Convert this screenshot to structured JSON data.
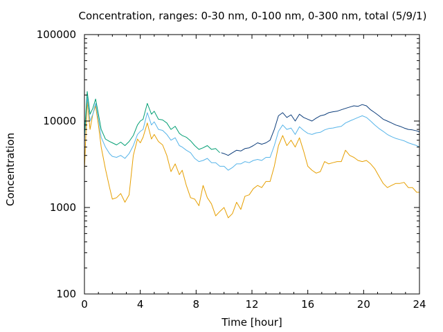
{
  "chart_data": {
    "type": "line",
    "title": "Concentration, ranges: 0-30 nm, 0-100 nm, 0-300 nm, total (5/9/1)",
    "xlabel": "Time [hour]",
    "ylabel": "Concentration",
    "xlim": [
      0,
      24
    ],
    "ylim": [
      100,
      100000
    ],
    "yscale": "log",
    "xticks": [
      0,
      4,
      8,
      12,
      16,
      20,
      24
    ],
    "xtick_labels": [
      "0",
      "4",
      "8",
      "12",
      "16",
      "20",
      "24"
    ],
    "yticks": [
      100,
      1000,
      10000,
      100000
    ],
    "ytick_labels": [
      "100",
      "1000",
      "10000",
      "100000"
    ],
    "grid": false,
    "legend": "none",
    "series": [
      {
        "color": "#e69f00",
        "x": [
          0,
          0.2,
          0.4,
          0.6,
          0.8,
          1.0,
          1.2,
          1.5,
          1.8,
          2.0,
          2.3,
          2.6,
          2.9,
          3.2,
          3.5,
          3.8,
          4.0,
          4.2,
          4.5,
          4.8,
          5.0,
          5.3,
          5.6,
          5.9,
          6.2,
          6.5,
          6.8,
          7.0,
          7.3,
          7.6,
          7.9,
          8.2,
          8.5,
          8.8,
          9.1,
          9.4,
          9.7,
          10.0,
          10.3,
          10.6,
          10.9,
          11.2,
          11.5,
          11.8,
          12.1,
          12.4,
          12.7,
          13.0,
          13.3,
          13.6,
          13.9,
          14.2,
          14.5,
          14.8,
          15.1,
          15.4,
          15.7,
          16.0,
          16.3,
          16.6,
          16.9,
          17.2,
          17.5,
          17.8,
          18.1,
          18.4,
          18.7,
          19.0,
          19.3,
          19.6,
          19.9,
          20.2,
          20.5,
          20.8,
          21.1,
          21.4,
          21.7,
          22.0,
          22.3,
          22.6,
          22.9,
          23.2,
          23.5,
          23.8,
          24.0
        ],
        "y": [
          2700,
          17000,
          8000,
          12000,
          15000,
          9000,
          5000,
          2800,
          1700,
          1250,
          1300,
          1450,
          1150,
          1400,
          4000,
          6200,
          5600,
          6500,
          9500,
          6200,
          7000,
          5800,
          5300,
          4000,
          2600,
          3200,
          2400,
          2700,
          1800,
          1300,
          1250,
          1050,
          1800,
          1300,
          1100,
          800,
          900,
          1000,
          760,
          850,
          1150,
          950,
          1350,
          1400,
          1650,
          1800,
          1700,
          2000,
          2000,
          3000,
          5200,
          6800,
          5200,
          6000,
          5000,
          6400,
          4500,
          3000,
          2700,
          2500,
          2600,
          3400,
          3200,
          3300,
          3400,
          3400,
          4600,
          4000,
          3800,
          3500,
          3400,
          3500,
          3200,
          2800,
          2300,
          1900,
          1700,
          1800,
          1900,
          1900,
          1950,
          1700,
          1700,
          1500,
          1500
        ]
      },
      {
        "color": "#56b4e9",
        "x": [
          0,
          0.2,
          0.4,
          0.6,
          0.8,
          1.0,
          1.2,
          1.5,
          1.8,
          2.0,
          2.3,
          2.6,
          2.9,
          3.2,
          3.5,
          3.8,
          4.0,
          4.2,
          4.5,
          4.8,
          5.0,
          5.3,
          5.6,
          5.9,
          6.2,
          6.5,
          6.8,
          7.0,
          7.3,
          7.6,
          7.9,
          8.2,
          8.5,
          8.8,
          9.1,
          9.4,
          9.7,
          10.0,
          10.3,
          10.6,
          10.9,
          11.2,
          11.5,
          11.8,
          12.1,
          12.4,
          12.7,
          13.0,
          13.3,
          13.6,
          13.9,
          14.2,
          14.5,
          14.8,
          15.1,
          15.4,
          15.7,
          16.0,
          16.3,
          16.6,
          16.9,
          17.2,
          17.5,
          17.8,
          18.1,
          18.4,
          18.7,
          19.0,
          19.3,
          19.6,
          19.9,
          20.2,
          20.5,
          20.8,
          21.1,
          21.4,
          21.7,
          22.0,
          22.3,
          22.6,
          22.9,
          23.2,
          23.5,
          23.8,
          24.0
        ],
        "y": [
          6000,
          19000,
          10000,
          12000,
          16000,
          10500,
          6500,
          5000,
          4200,
          3900,
          3800,
          4000,
          3700,
          4200,
          5200,
          7000,
          7600,
          8000,
          12500,
          9000,
          9800,
          8000,
          7800,
          7000,
          6000,
          6400,
          5200,
          5000,
          4600,
          4300,
          3700,
          3400,
          3500,
          3700,
          3300,
          3300,
          3000,
          3000,
          2700,
          2900,
          3200,
          3200,
          3400,
          3300,
          3500,
          3600,
          3500,
          3800,
          3800,
          5200,
          7600,
          9000,
          8000,
          8300,
          7000,
          8600,
          7800,
          7200,
          7000,
          7300,
          7400,
          7900,
          8200,
          8300,
          8500,
          8700,
          9500,
          10000,
          10500,
          11000,
          11500,
          11000,
          10000,
          9000,
          8200,
          7600,
          7000,
          6600,
          6300,
          6100,
          5900,
          5600,
          5400,
          5200,
          5000
        ]
      },
      {
        "color": "#009e73",
        "x": [
          0,
          0.2,
          0.4,
          0.6,
          0.8,
          1.0,
          1.2,
          1.5,
          1.8,
          2.0,
          2.3,
          2.6,
          2.9,
          3.2,
          3.5,
          3.8,
          4.0,
          4.2,
          4.5,
          4.8,
          5.0,
          5.3,
          5.6,
          5.9,
          6.2,
          6.5,
          6.8,
          7.0,
          7.3,
          7.6,
          7.9,
          8.2,
          8.5,
          8.8,
          9.1,
          9.4,
          9.7
        ],
        "y": [
          7000,
          22000,
          12000,
          14000,
          18000,
          12000,
          8000,
          6200,
          5800,
          5600,
          5300,
          5700,
          5200,
          5800,
          6800,
          9000,
          10000,
          10500,
          16000,
          12000,
          13000,
          10500,
          10300,
          9500,
          8000,
          8700,
          7200,
          6800,
          6500,
          5900,
          5200,
          4700,
          4900,
          5200,
          4700,
          4800,
          4300
        ]
      },
      {
        "color": "#0b3c7a",
        "x": [
          9.8,
          10.0,
          10.3,
          10.6,
          10.9,
          11.2,
          11.5,
          11.8,
          12.1,
          12.4,
          12.7,
          13.0,
          13.3,
          13.6,
          13.9,
          14.2,
          14.5,
          14.8,
          15.1,
          15.4,
          15.7,
          16.0,
          16.3,
          16.6,
          16.9,
          17.2,
          17.5,
          17.8,
          18.1,
          18.4,
          18.7,
          19.0,
          19.3,
          19.6,
          19.9,
          20.2,
          20.5,
          20.8,
          21.1,
          21.4,
          21.7,
          22.0,
          22.3,
          22.6,
          22.9,
          23.2,
          23.5,
          23.8,
          24.0
        ],
        "y": [
          4300,
          4200,
          4000,
          4300,
          4600,
          4500,
          4800,
          4900,
          5200,
          5600,
          5400,
          5600,
          6000,
          8000,
          11500,
          12500,
          11000,
          11800,
          10000,
          12000,
          11000,
          10500,
          10000,
          10800,
          11500,
          11800,
          12500,
          12800,
          13000,
          13500,
          14000,
          14500,
          15000,
          14800,
          15500,
          15000,
          13500,
          12500,
          11500,
          10500,
          10000,
          9500,
          9000,
          8700,
          8300,
          8000,
          7900,
          7700,
          7500
        ]
      }
    ]
  }
}
